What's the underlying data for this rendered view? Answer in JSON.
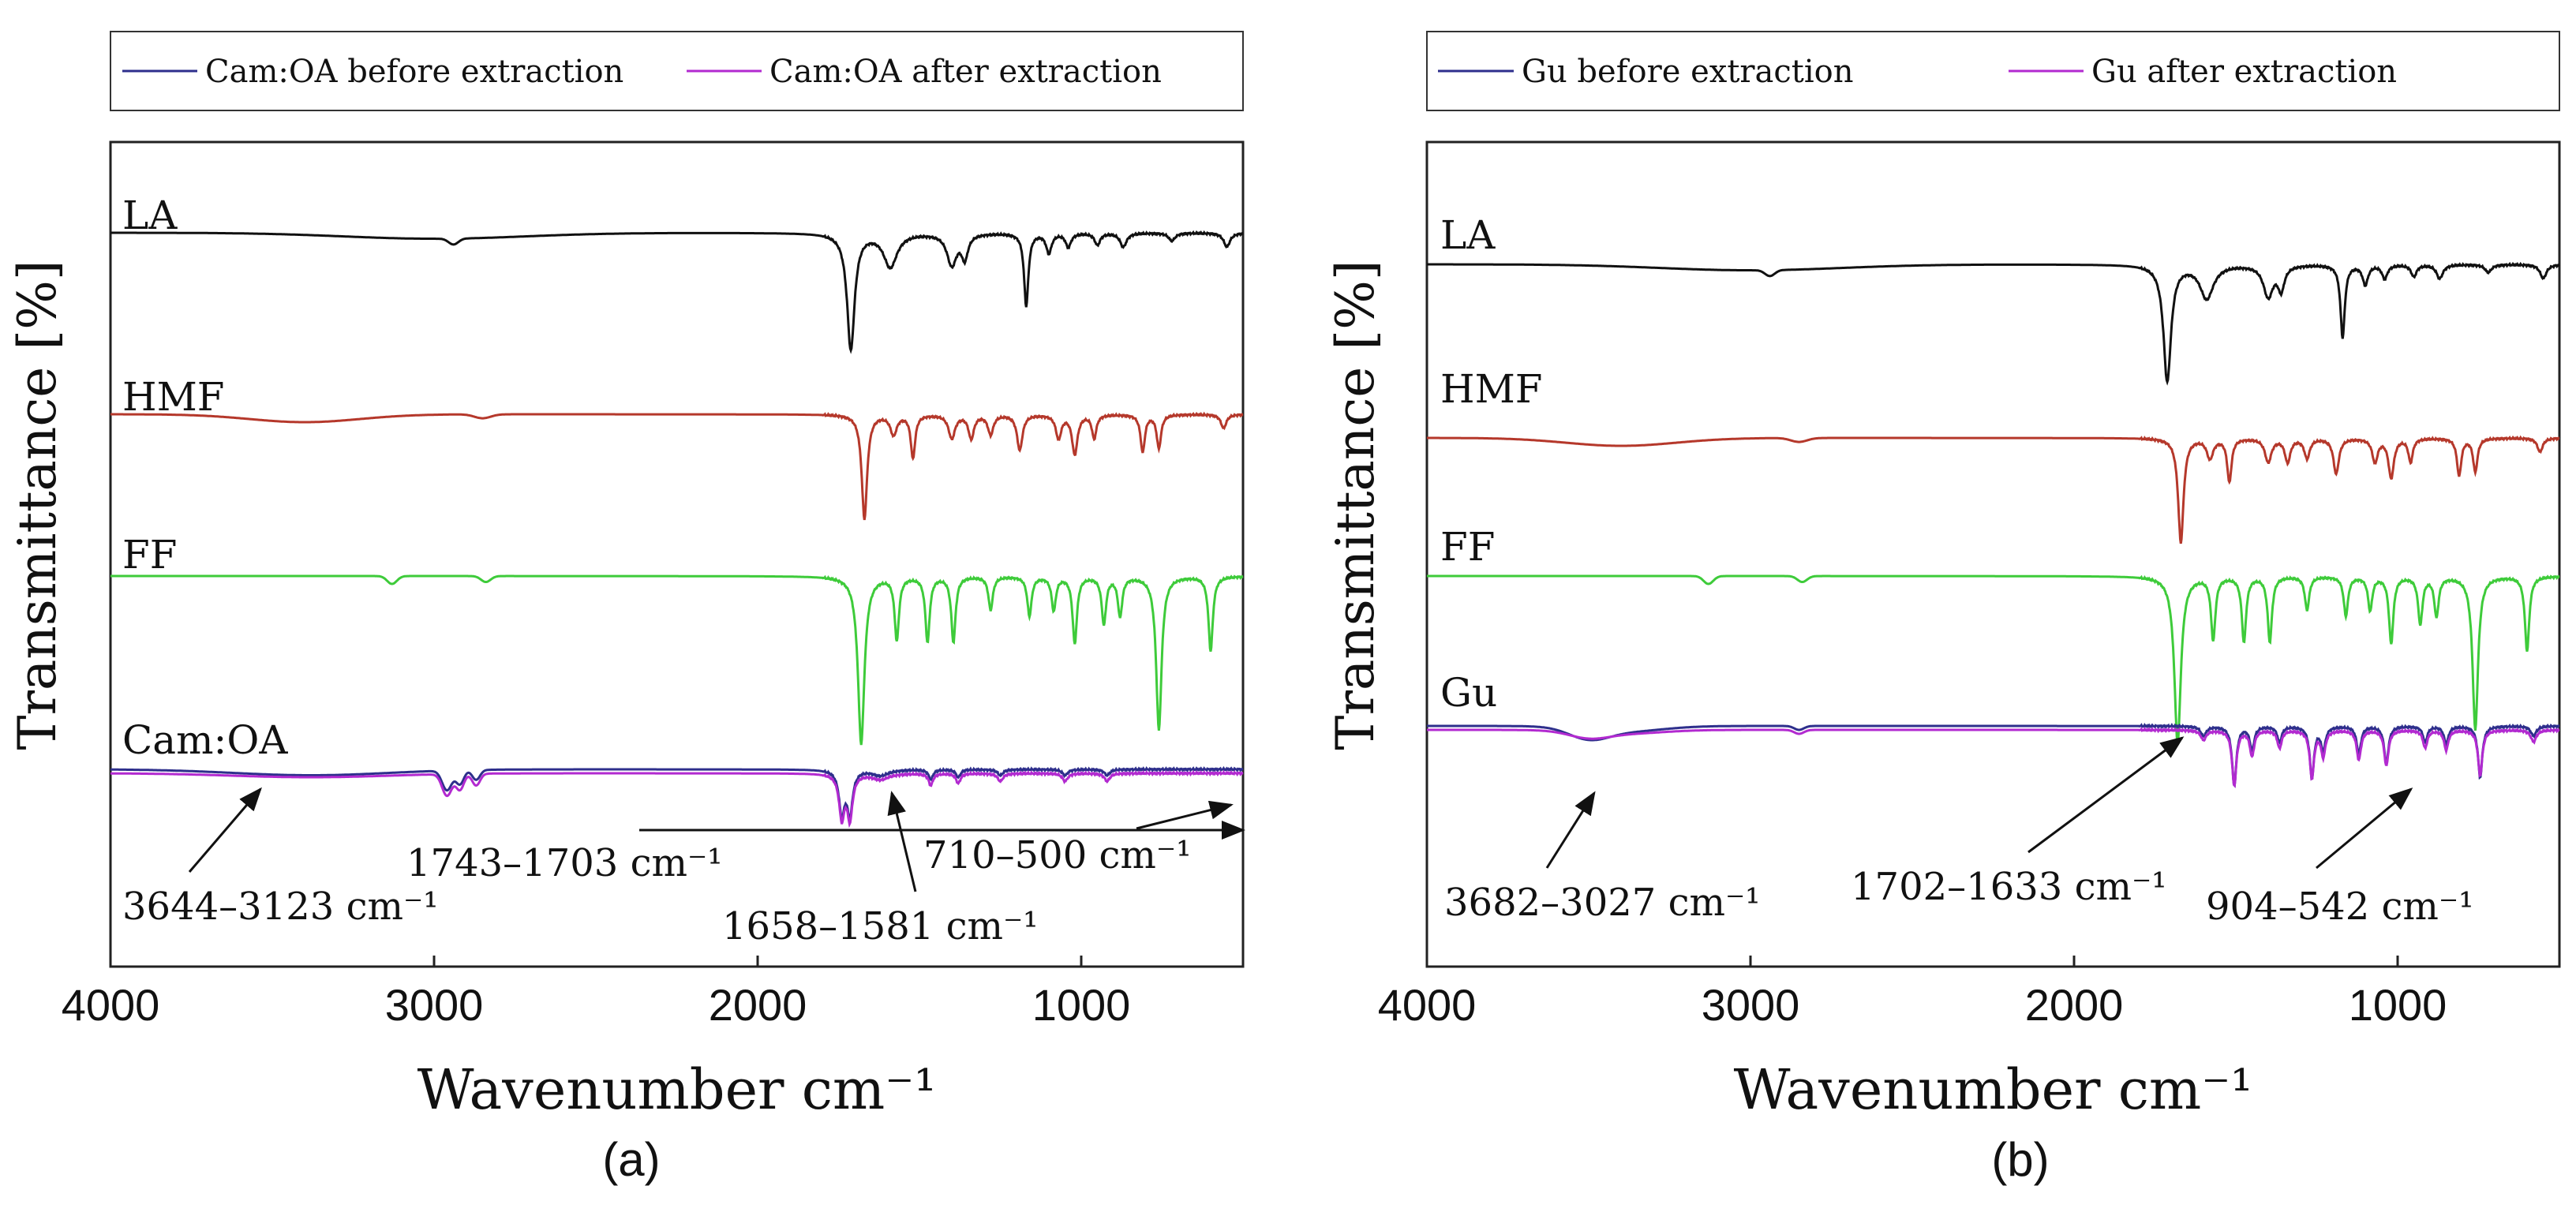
{
  "chart_data": [
    {
      "type": "line",
      "panel_label": "(a)",
      "xlabel": "Wavenumber cm⁻¹",
      "ylabel": "Transmittance [%]",
      "xlim": [
        4000,
        500
      ],
      "x_ticks": [
        4000,
        3000,
        2000,
        1000
      ],
      "x_tick_labels": [
        "4000",
        "3000",
        "2000",
        "1000"
      ],
      "grid": false,
      "legend_position": "top",
      "legend": [
        {
          "label": "Cam:OA before extraction",
          "color": "#2e2f8c"
        },
        {
          "label": "Cam:OA after extraction",
          "color": "#b22ad0"
        }
      ],
      "traces": [
        {
          "label": "LA",
          "color": "#111111",
          "baseline": 9.0,
          "peaks": [
            [
              1712,
              5.9,
              14
            ],
            [
              1590,
              1.7,
              25
            ],
            [
              1400,
              1.6,
              18
            ],
            [
              1360,
              1.2,
              12
            ],
            [
              1170,
              3.7,
              8
            ],
            [
              1100,
              1.0,
              10
            ],
            [
              1040,
              0.7,
              10
            ],
            [
              950,
              0.6,
              10
            ],
            [
              870,
              0.7,
              12
            ],
            [
              720,
              0.4,
              12
            ],
            [
              550,
              0.7,
              12
            ]
          ],
          "bands": [
            [
              3000,
              0.3,
              280
            ],
            [
              2940,
              0.3,
              15
            ]
          ]
        },
        {
          "label": "HMF",
          "color": "#b5382b",
          "baseline": 6.5,
          "peaks": [
            [
              1670,
              5.3,
              10
            ],
            [
              1580,
              1.0,
              12
            ],
            [
              1520,
              2.2,
              8
            ],
            [
              1400,
              1.2,
              12
            ],
            [
              1340,
              1.2,
              10
            ],
            [
              1280,
              1.0,
              10
            ],
            [
              1190,
              1.8,
              10
            ],
            [
              1070,
              1.2,
              10
            ],
            [
              1020,
              2.0,
              10
            ],
            [
              960,
              1.2,
              8
            ],
            [
              810,
              1.9,
              8
            ],
            [
              760,
              1.7,
              8
            ],
            [
              560,
              0.7,
              10
            ]
          ],
          "bands": [
            [
              3400,
              0.4,
              170
            ],
            [
              2850,
              0.2,
              25
            ]
          ]
        },
        {
          "label": "FF",
          "color": "#3ecb3a",
          "baseline": 3.8,
          "peaks": [
            [
              1680,
              8.5,
              12
            ],
            [
              1570,
              3.2,
              8
            ],
            [
              1475,
              3.3,
              8
            ],
            [
              1395,
              3.3,
              8
            ],
            [
              1280,
              1.7,
              8
            ],
            [
              1160,
              2.0,
              8
            ],
            [
              1085,
              1.7,
              8
            ],
            [
              1020,
              3.4,
              8
            ],
            [
              930,
              2.4,
              8
            ],
            [
              880,
              2.0,
              8
            ],
            [
              760,
              7.8,
              10
            ],
            [
              600,
              3.8,
              8
            ]
          ],
          "bands": [
            [
              3130,
              0.4,
              15
            ],
            [
              2840,
              0.3,
              15
            ]
          ]
        },
        {
          "label": "Cam:OA",
          "color": "#2e2f8c",
          "baseline": 0.4,
          "peaks": [
            [
              1740,
              2.2,
              10
            ],
            [
              1715,
              2.2,
              10
            ],
            [
              1620,
              0.3,
              30
            ],
            [
              1465,
              0.5,
              8
            ],
            [
              1380,
              0.4,
              8
            ],
            [
              1250,
              0.3,
              10
            ],
            [
              1050,
              0.3,
              10
            ],
            [
              920,
              0.3,
              10
            ]
          ],
          "bands": [
            [
              3380,
              0.3,
              240
            ],
            [
              2960,
              1.0,
              15
            ],
            [
              2920,
              0.7,
              12
            ],
            [
              2870,
              0.5,
              12
            ]
          ]
        },
        {
          "label": "",
          "color": "#b22ad0",
          "baseline": 0.3,
          "peaks": [
            [
              1740,
              2.2,
              10
            ],
            [
              1715,
              2.2,
              10
            ],
            [
              1620,
              0.3,
              30
            ],
            [
              1465,
              0.6,
              8
            ],
            [
              1380,
              0.5,
              8
            ],
            [
              1250,
              0.4,
              10
            ],
            [
              1050,
              0.4,
              10
            ],
            [
              920,
              0.4,
              10
            ]
          ],
          "bands": [
            [
              3380,
              0.2,
              240
            ],
            [
              2960,
              1.1,
              15
            ],
            [
              2920,
              0.8,
              12
            ],
            [
              2870,
              0.6,
              12
            ]
          ]
        }
      ],
      "annotations": [
        {
          "text": "3644–3123 cm⁻¹"
        },
        {
          "text": "1743–1703 cm⁻¹"
        },
        {
          "text": "1658–1581 cm⁻¹"
        },
        {
          "text": "710–500 cm⁻¹"
        }
      ]
    },
    {
      "type": "line",
      "panel_label": "(b)",
      "xlabel": "Wavenumber cm⁻¹",
      "ylabel": "Transmittance [%]",
      "xlim": [
        4000,
        500
      ],
      "x_ticks": [
        4000,
        3000,
        2000,
        1000
      ],
      "x_tick_labels": [
        "4000",
        "3000",
        "2000",
        "1000"
      ],
      "grid": false,
      "legend_position": "top",
      "legend": [
        {
          "label": "Gu before extraction",
          "color": "#2e2f8c"
        },
        {
          "label": "Gu after extraction",
          "color": "#b22ad0"
        }
      ],
      "traces": [
        {
          "label": "LA",
          "color": "#111111",
          "baseline": 9.0,
          "peaks": [
            [
              1712,
              5.9,
              14
            ],
            [
              1590,
              1.7,
              25
            ],
            [
              1400,
              1.6,
              18
            ],
            [
              1360,
              1.2,
              12
            ],
            [
              1170,
              3.7,
              8
            ],
            [
              1100,
              1.0,
              10
            ],
            [
              1040,
              0.7,
              10
            ],
            [
              950,
              0.6,
              10
            ],
            [
              870,
              0.7,
              12
            ],
            [
              720,
              0.4,
              12
            ],
            [
              550,
              0.7,
              12
            ]
          ],
          "bands": [
            [
              3000,
              0.3,
              280
            ],
            [
              2940,
              0.3,
              15
            ]
          ]
        },
        {
          "label": "HMF",
          "color": "#b5382b",
          "baseline": 6.5,
          "peaks": [
            [
              1670,
              5.3,
              10
            ],
            [
              1580,
              1.0,
              12
            ],
            [
              1520,
              2.2,
              8
            ],
            [
              1400,
              1.2,
              12
            ],
            [
              1340,
              1.2,
              10
            ],
            [
              1280,
              1.0,
              10
            ],
            [
              1190,
              1.8,
              10
            ],
            [
              1070,
              1.2,
              10
            ],
            [
              1020,
              2.0,
              10
            ],
            [
              960,
              1.2,
              8
            ],
            [
              810,
              1.9,
              8
            ],
            [
              760,
              1.7,
              8
            ],
            [
              560,
              0.7,
              10
            ]
          ],
          "bands": [
            [
              3400,
              0.4,
              170
            ],
            [
              2850,
              0.2,
              25
            ]
          ]
        },
        {
          "label": "FF",
          "color": "#3ecb3a",
          "baseline": 3.8,
          "peaks": [
            [
              1680,
              8.5,
              12
            ],
            [
              1570,
              3.2,
              8
            ],
            [
              1475,
              3.3,
              8
            ],
            [
              1395,
              3.3,
              8
            ],
            [
              1280,
              1.7,
              8
            ],
            [
              1160,
              2.0,
              8
            ],
            [
              1085,
              1.7,
              8
            ],
            [
              1020,
              3.4,
              8
            ],
            [
              930,
              2.4,
              8
            ],
            [
              880,
              2.0,
              8
            ],
            [
              760,
              7.8,
              10
            ],
            [
              600,
              3.8,
              8
            ]
          ],
          "bands": [
            [
              3130,
              0.4,
              15
            ],
            [
              2840,
              0.3,
              15
            ]
          ]
        },
        {
          "label": "Gu",
          "color": "#2e2f8c",
          "baseline": 0.4,
          "peaks": [
            [
              1600,
              0.5,
              10
            ],
            [
              1505,
              3.0,
              8
            ],
            [
              1450,
              1.2,
              8
            ],
            [
              1365,
              0.8,
              8
            ],
            [
              1265,
              2.6,
              8
            ],
            [
              1230,
              1.2,
              8
            ],
            [
              1120,
              1.4,
              8
            ],
            [
              1035,
              1.9,
              8
            ],
            [
              915,
              0.8,
              8
            ],
            [
              850,
              0.9,
              8
            ],
            [
              745,
              2.6,
              8
            ],
            [
              580,
              0.5,
              10
            ]
          ],
          "bands": [
            [
              3500,
              0.5,
              60
            ],
            [
              3400,
              0.3,
              120
            ],
            [
              2850,
              0.2,
              15
            ]
          ]
        },
        {
          "label": "",
          "color": "#b22ad0",
          "baseline": 0.2,
          "peaks": [
            [
              1600,
              0.5,
              10
            ],
            [
              1505,
              2.8,
              8
            ],
            [
              1450,
              1.3,
              8
            ],
            [
              1365,
              0.9,
              8
            ],
            [
              1265,
              2.4,
              8
            ],
            [
              1230,
              1.3,
              8
            ],
            [
              1120,
              1.5,
              8
            ],
            [
              1035,
              1.8,
              8
            ],
            [
              915,
              0.9,
              8
            ],
            [
              850,
              1.0,
              8
            ],
            [
              745,
              2.3,
              8
            ],
            [
              580,
              0.6,
              10
            ]
          ],
          "bands": [
            [
              3500,
              0.3,
              60
            ],
            [
              3400,
              0.2,
              120
            ],
            [
              2850,
              0.2,
              15
            ]
          ]
        }
      ],
      "annotations": [
        {
          "text": "3682–3027 cm⁻¹"
        },
        {
          "text": "1702–1633 cm⁻¹"
        },
        {
          "text": "904–542 cm⁻¹"
        }
      ]
    }
  ]
}
